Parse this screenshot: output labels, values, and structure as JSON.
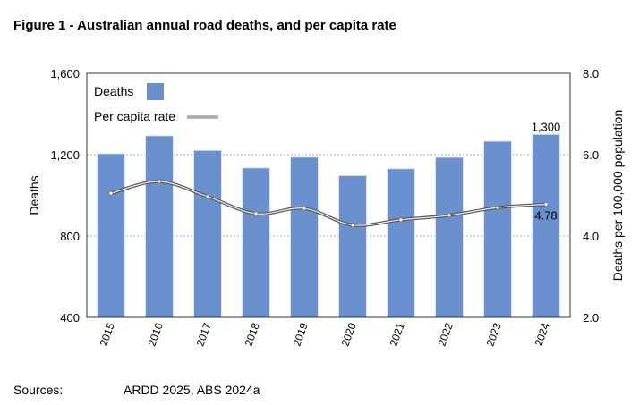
{
  "title": "Figure 1 - Australian annual road deaths, and per capita rate",
  "sources": {
    "label": "Sources:",
    "text": "ARDD 2025, ABS 2024a"
  },
  "chart_data": {
    "type": "bar",
    "categories": [
      "2015",
      "2016",
      "2017",
      "2018",
      "2019",
      "2020",
      "2021",
      "2022",
      "2023",
      "2024"
    ],
    "series": [
      {
        "name": "Deaths",
        "type": "bar",
        "axis": "left",
        "color": "#6a91cd",
        "values": [
          1205,
          1293,
          1221,
          1135,
          1188,
          1097,
          1131,
          1187,
          1266,
          1300
        ]
      },
      {
        "name": "Per capita rate",
        "type": "line",
        "axis": "right",
        "color": "#555555",
        "values": [
          5.05,
          5.34,
          4.97,
          4.55,
          4.68,
          4.27,
          4.4,
          4.51,
          4.7,
          4.78
        ]
      }
    ],
    "ylabel": "Deaths",
    "y2label": "Deaths per 100,000 population",
    "ylim": [
      400,
      1600
    ],
    "y2lim": [
      2.0,
      8.0
    ],
    "yticks": [
      "400",
      "800",
      "1,200",
      "1,600"
    ],
    "y2ticks": [
      "2.0",
      "4.0",
      "6.0",
      "8.0"
    ],
    "data_labels": {
      "bar_last": "1,300",
      "line_last": "4.78"
    },
    "legend": {
      "position": "top-left",
      "entries": [
        "Deaths",
        "Per capita rate"
      ]
    },
    "grid": true
  }
}
